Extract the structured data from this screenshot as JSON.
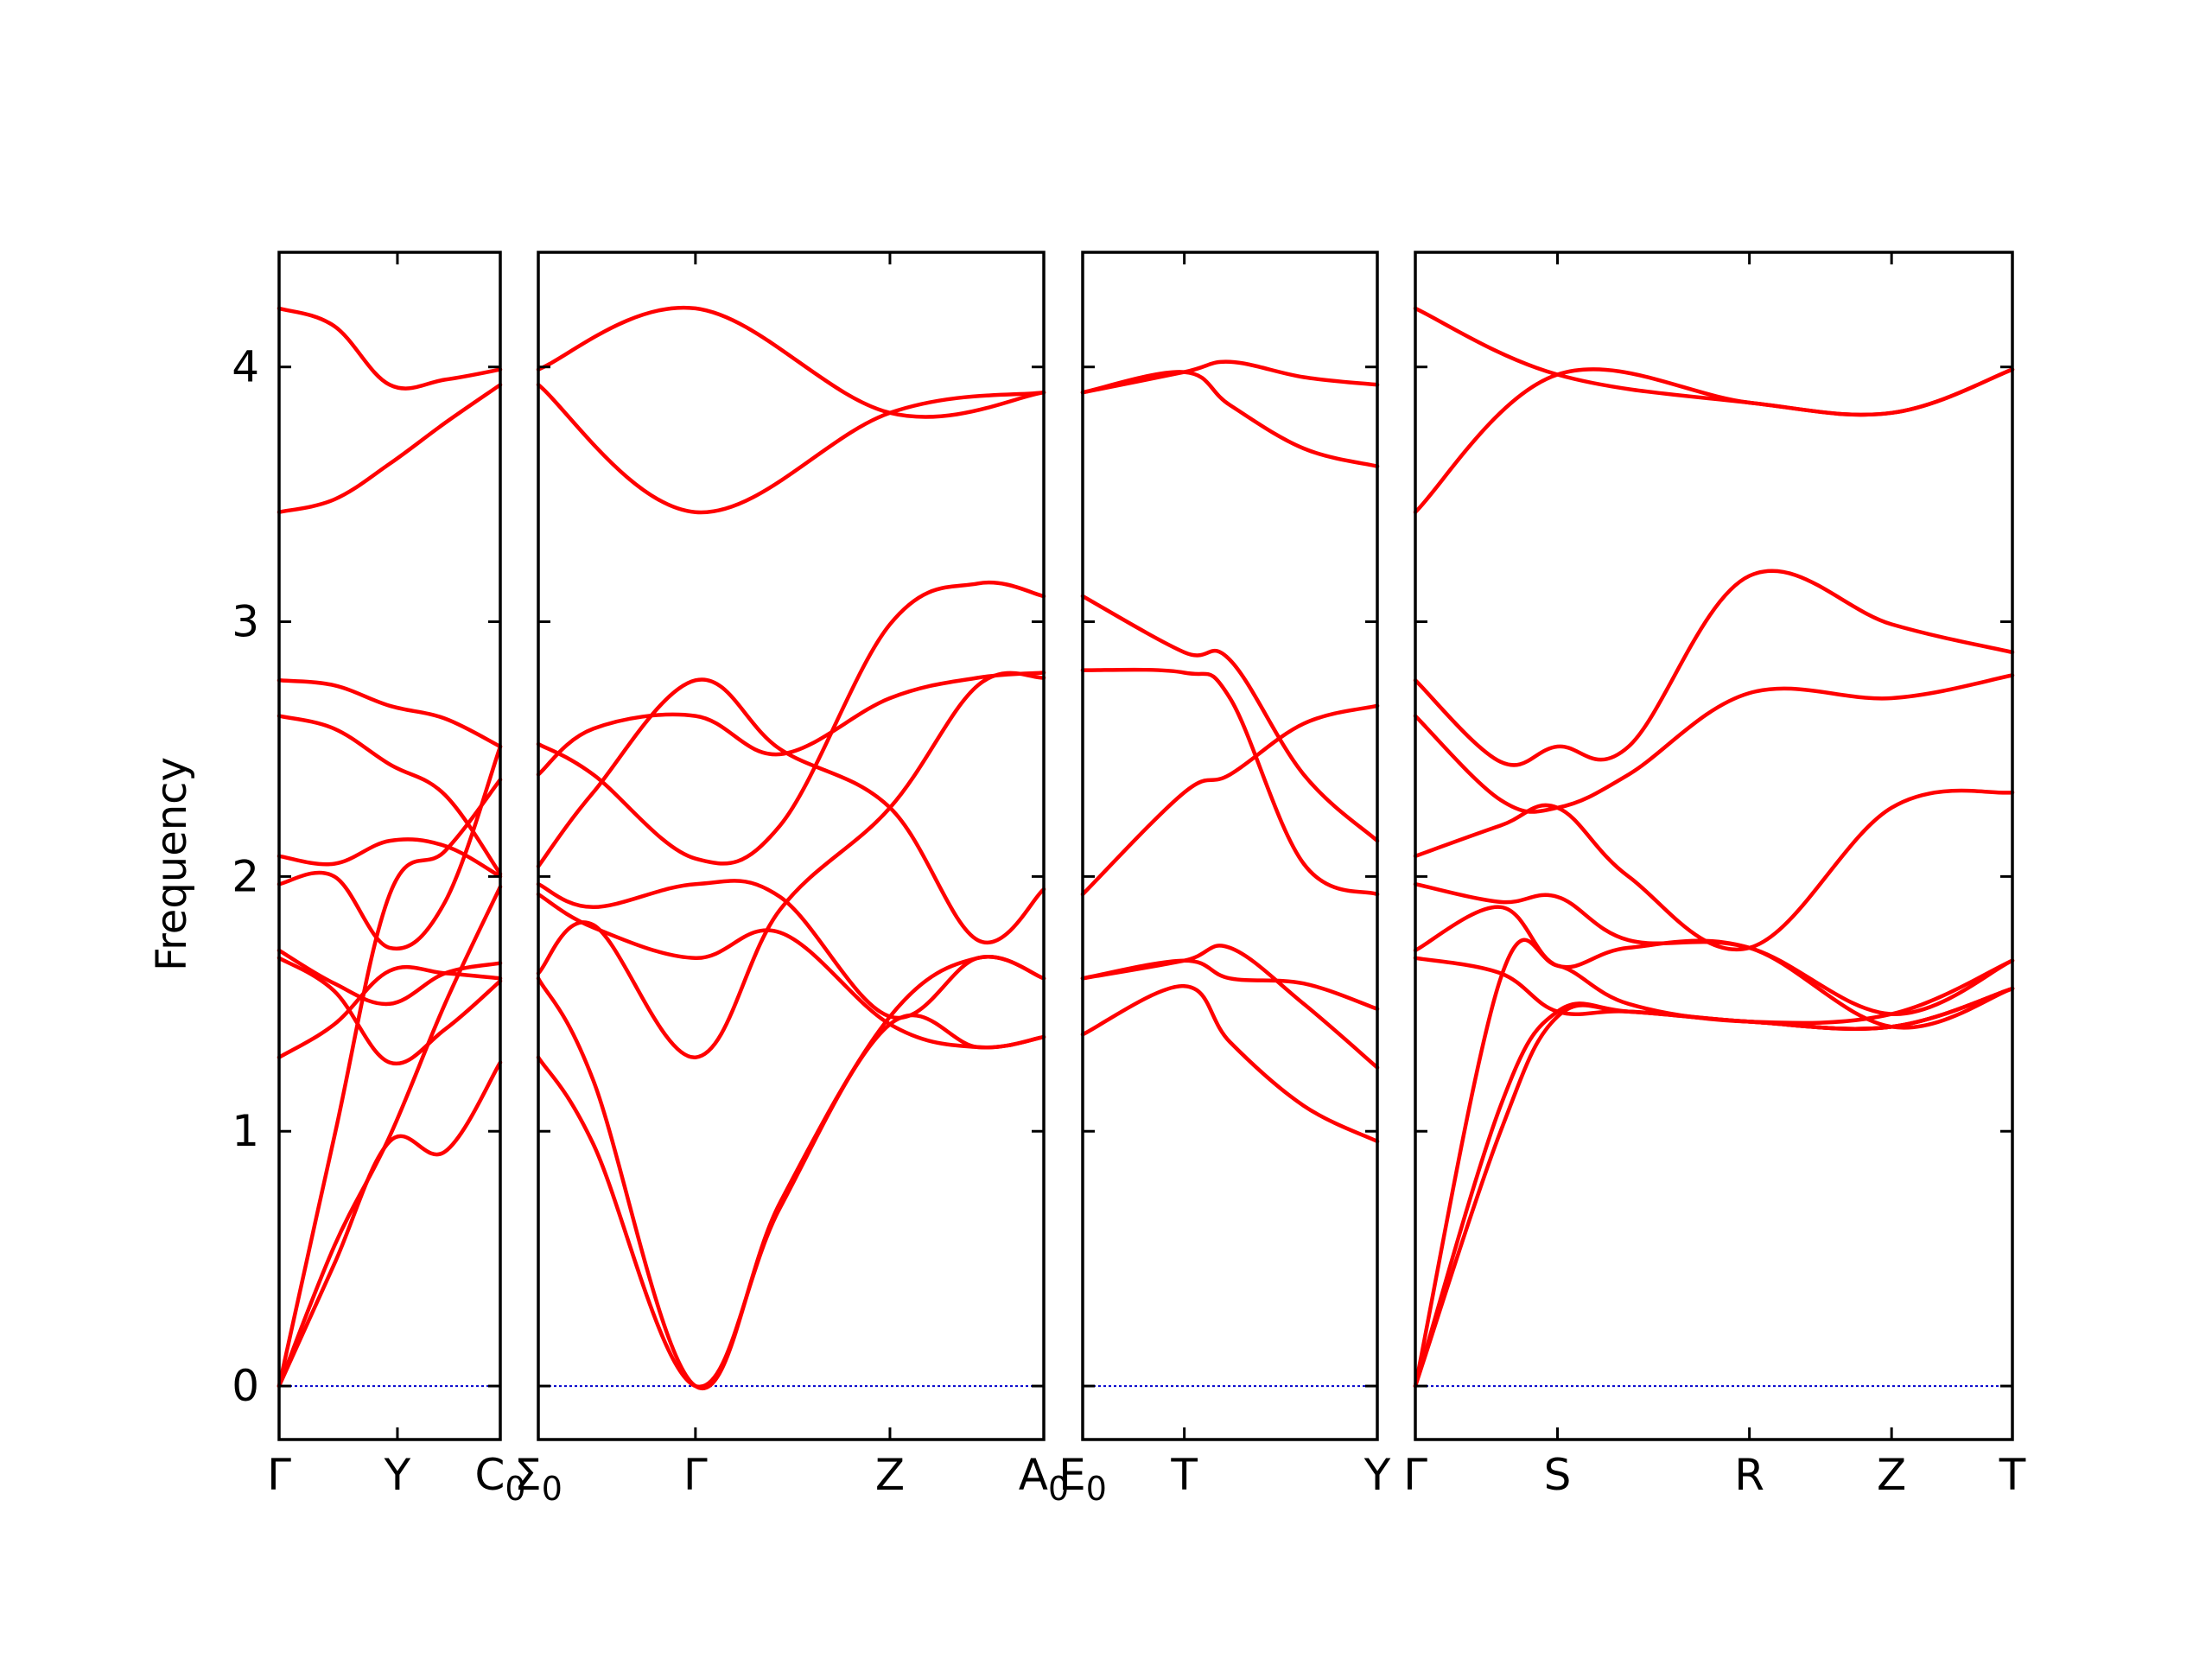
{
  "chart_data": {
    "type": "line",
    "title": "",
    "ylabel": "Frequency",
    "ylim": [
      -0.21,
      4.45
    ],
    "yticks": [
      0,
      1,
      2,
      3,
      4
    ],
    "grid": false,
    "line_color": "#ff0000",
    "zero_line_color": "#0000cc",
    "panels": [
      {
        "id": "p1",
        "xlim": [
          0,
          2
        ],
        "ticks": [
          {
            "x": 0,
            "label": "Γ"
          },
          {
            "x": 1.07,
            "label": "Y"
          },
          {
            "x": 2,
            "label": "C0"
          }
        ],
        "bands": [
          {
            "x": [
              0,
              0.5,
              1.0,
              1.5,
              2.0
            ],
            "y": [
              4.23,
              4.16,
              3.93,
              3.95,
              3.99
            ]
          },
          {
            "x": [
              0,
              0.5,
              1.0,
              1.5,
              2.0
            ],
            "y": [
              3.43,
              3.48,
              3.62,
              3.78,
              3.93
            ]
          },
          {
            "x": [
              0,
              0.5,
              1.0,
              1.5,
              2.0
            ],
            "y": [
              2.77,
              2.75,
              2.67,
              2.62,
              2.51
            ]
          },
          {
            "x": [
              0,
              0.5,
              1.0,
              1.5,
              2.0
            ],
            "y": [
              2.63,
              2.58,
              2.44,
              2.32,
              2.01
            ]
          },
          {
            "x": [
              0,
              0.5,
              1.0,
              1.5,
              2.0
            ],
            "y": [
              2.08,
              2.05,
              2.14,
              2.12,
              2.0
            ]
          },
          {
            "x": [
              0,
              0.5,
              1.0,
              1.5,
              2.0
            ],
            "y": [
              1.97,
              2.0,
              1.72,
              1.9,
              2.51
            ]
          },
          {
            "x": [
              0,
              0.5,
              1.0,
              1.5,
              2.0
            ],
            "y": [
              1.71,
              1.58,
              1.5,
              1.62,
              1.66
            ]
          },
          {
            "x": [
              0,
              0.5,
              1.0,
              1.5,
              2.0
            ],
            "y": [
              1.68,
              1.55,
              1.27,
              1.4,
              1.59
            ]
          },
          {
            "x": [
              0,
              0.5,
              1.0,
              1.5,
              2.0
            ],
            "y": [
              1.29,
              1.42,
              1.63,
              1.62,
              1.6
            ]
          },
          {
            "x": [
              0,
              0.5,
              1.0,
              1.5,
              2.0
            ],
            "y": [
              0.0,
              0.98,
              1.93,
              2.1,
              2.38
            ]
          },
          {
            "x": [
              0,
              0.5,
              1.0,
              1.5,
              2.0
            ],
            "y": [
              0.0,
              0.55,
              0.98,
              1.5,
              1.96
            ]
          },
          {
            "x": [
              0,
              0.5,
              1.0,
              1.5,
              2.0
            ],
            "y": [
              0.0,
              0.48,
              0.96,
              0.92,
              1.27
            ]
          }
        ]
      },
      {
        "id": "p2",
        "xlim": [
          0,
          4.6
        ],
        "ticks": [
          {
            "x": 0,
            "label": "Σ0"
          },
          {
            "x": 1.43,
            "label": "Γ"
          },
          {
            "x": 3.2,
            "label": "Z"
          },
          {
            "x": 4.6,
            "label": "A0"
          }
        ],
        "bands": [
          {
            "x": [
              0,
              1.43,
              3.2,
              4.6
            ],
            "y": [
              3.99,
              4.23,
              3.82,
              3.9
            ]
          },
          {
            "x": [
              0,
              1.43,
              3.2,
              4.6
            ],
            "y": [
              3.93,
              3.43,
              3.82,
              3.9
            ]
          },
          {
            "x": [
              0,
              0.5,
              1.43,
              2.2,
              3.2,
              4.0,
              4.6
            ],
            "y": [
              2.52,
              2.4,
              2.07,
              2.2,
              2.99,
              3.15,
              3.1
            ]
          },
          {
            "x": [
              0,
              0.5,
              1.43,
              2.2,
              3.2,
              4.0,
              4.6
            ],
            "y": [
              2.4,
              2.58,
              2.63,
              2.48,
              2.7,
              2.78,
              2.8
            ]
          },
          {
            "x": [
              0,
              0.5,
              1.43,
              2.2,
              3.2,
              4.0,
              4.6
            ],
            "y": [
              2.04,
              2.33,
              2.77,
              2.5,
              2.27,
              1.75,
              1.95
            ]
          },
          {
            "x": [
              0,
              0.5,
              1.43,
              2.2,
              3.2,
              4.0,
              4.6
            ],
            "y": [
              1.97,
              1.88,
              1.97,
              1.92,
              1.45,
              1.68,
              1.6
            ]
          },
          {
            "x": [
              0,
              0.5,
              1.43,
              2.2,
              3.2,
              4.0,
              4.6
            ],
            "y": [
              1.93,
              1.8,
              1.68,
              1.78,
              1.42,
              1.33,
              1.37
            ]
          },
          {
            "x": [
              0,
              0.5,
              1.43,
              2.2,
              3.2,
              4.0,
              4.6
            ],
            "y": [
              1.62,
              1.81,
              1.29,
              1.87,
              2.27,
              2.75,
              2.78
            ]
          },
          {
            "x": [
              0,
              0.5,
              1.43,
              2.2,
              3.2,
              4.0,
              4.6
            ],
            "y": [
              1.6,
              1.2,
              0.0,
              0.72,
              1.45,
              1.68,
              1.6
            ]
          },
          {
            "x": [
              0,
              0.5,
              1.43,
              2.2,
              3.2,
              4.0,
              4.6
            ],
            "y": [
              1.29,
              0.95,
              0.0,
              0.7,
              1.42,
              1.33,
              1.37
            ]
          }
        ]
      },
      {
        "id": "p3",
        "xlim": [
          0,
          2.0
        ],
        "ticks": [
          {
            "x": 0,
            "label": "E0"
          },
          {
            "x": 0.69,
            "label": "T"
          },
          {
            "x": 2.0,
            "label": "Y"
          }
        ],
        "bands": [
          {
            "x": [
              0,
              0.69,
              1.0,
              1.5,
              2.0
            ],
            "y": [
              3.9,
              3.98,
              4.02,
              3.96,
              3.93
            ]
          },
          {
            "x": [
              0,
              0.69,
              1.0,
              1.5,
              2.0
            ],
            "y": [
              3.9,
              3.98,
              3.85,
              3.68,
              3.61
            ]
          },
          {
            "x": [
              0,
              0.69,
              1.0,
              1.5,
              2.0
            ],
            "y": [
              3.1,
              2.88,
              2.85,
              2.4,
              2.14
            ]
          },
          {
            "x": [
              0,
              0.69,
              1.0,
              1.5,
              2.0
            ],
            "y": [
              2.81,
              2.8,
              2.7,
              2.05,
              1.93
            ]
          },
          {
            "x": [
              0,
              0.69,
              1.0,
              1.5,
              2.0
            ],
            "y": [
              1.93,
              2.33,
              2.4,
              2.6,
              2.67
            ]
          },
          {
            "x": [
              0,
              0.69,
              1.0,
              1.5,
              2.0
            ],
            "y": [
              1.6,
              1.67,
              1.72,
              1.5,
              1.25
            ]
          },
          {
            "x": [
              0,
              0.69,
              1.0,
              1.5,
              2.0
            ],
            "y": [
              1.38,
              1.57,
              1.35,
              1.1,
              0.96
            ]
          },
          {
            "x": [
              0,
              0.69,
              1.0,
              1.5,
              2.0
            ],
            "y": [
              1.6,
              1.67,
              1.6,
              1.58,
              1.48
            ]
          }
        ]
      },
      {
        "id": "p4",
        "xlim": [
          0,
          4.2
        ],
        "ticks": [
          {
            "x": 0,
            "label": "Γ"
          },
          {
            "x": 1.0,
            "label": "S"
          },
          {
            "x": 2.35,
            "label": "R"
          },
          {
            "x": 3.35,
            "label": "Z"
          },
          {
            "x": 4.2,
            "label": "T"
          }
        ],
        "bands": [
          {
            "x": [
              0,
              1.0,
              2.35,
              3.35,
              4.2
            ],
            "y": [
              4.23,
              3.97,
              3.86,
              3.82,
              3.99
            ]
          },
          {
            "x": [
              0,
              1.0,
              2.35,
              3.35,
              4.2
            ],
            "y": [
              3.43,
              3.97,
              3.86,
              3.82,
              3.99
            ]
          },
          {
            "x": [
              0,
              0.6,
              1.0,
              1.5,
              2.35,
              3.35,
              4.2
            ],
            "y": [
              2.77,
              2.45,
              2.51,
              2.51,
              3.18,
              2.99,
              2.88
            ]
          },
          {
            "x": [
              0,
              0.6,
              1.0,
              1.5,
              2.35,
              3.35,
              4.2
            ],
            "y": [
              2.63,
              2.3,
              2.27,
              2.4,
              2.72,
              2.7,
              2.79
            ]
          },
          {
            "x": [
              0,
              0.6,
              1.0,
              1.5,
              2.35,
              3.35,
              4.2
            ],
            "y": [
              2.08,
              2.2,
              2.27,
              2.0,
              1.72,
              2.27,
              2.33
            ]
          },
          {
            "x": [
              0,
              0.6,
              1.0,
              1.5,
              2.35,
              3.35,
              4.2
            ],
            "y": [
              1.97,
              1.9,
              1.92,
              1.75,
              1.72,
              1.46,
              1.67
            ]
          },
          {
            "x": [
              0,
              0.6,
              1.0,
              1.5,
              2.35,
              3.35,
              4.2
            ],
            "y": [
              1.71,
              1.88,
              1.65,
              1.72,
              1.72,
              1.41,
              1.56
            ]
          },
          {
            "x": [
              0,
              0.6,
              1.0,
              1.5,
              2.35,
              3.35,
              4.2
            ],
            "y": [
              1.68,
              1.62,
              1.47,
              1.47,
              1.43,
              1.41,
              1.56
            ]
          },
          {
            "x": [
              0,
              0.6,
              1.0,
              1.5,
              2.35,
              3.35,
              4.2
            ],
            "y": [
              0.0,
              1.6,
              1.65,
              1.5,
              1.43,
              1.46,
              1.67
            ]
          },
          {
            "x": [
              0,
              0.6,
              1.0,
              1.5,
              2.35,
              3.35,
              4.2
            ],
            "y": [
              0.0,
              1.1,
              1.47,
              1.47,
              1.43,
              1.41,
              1.56
            ]
          },
          {
            "x": [
              0,
              0.6,
              1.0,
              1.5,
              2.35,
              3.35,
              4.2
            ],
            "y": [
              0.0,
              1.0,
              1.45,
              1.47,
              1.43,
              1.41,
              1.56
            ]
          }
        ]
      }
    ]
  }
}
